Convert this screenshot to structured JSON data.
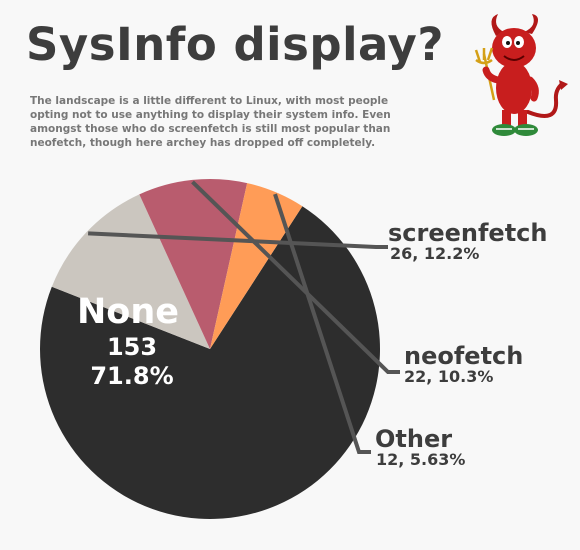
{
  "header": {
    "title": "SysInfo display?",
    "description": "The landscape is a little different to Linux, with most people opting not to use anything to display their system info. Even amongst those who do screenfetch is still most popular than neofetch, though here archey has dropped off completely."
  },
  "mascot": {
    "icon": "daemon-mascot-icon"
  },
  "chart_data": {
    "type": "pie",
    "title": "SysInfo display?",
    "slices": [
      {
        "name": "None",
        "count": "153",
        "percent": "71.8%",
        "value": 153,
        "color": "#2d2d2d"
      },
      {
        "name": "screenfetch",
        "count_percent": "26, 12.2%",
        "value": 26,
        "color": "#cbc6bf"
      },
      {
        "name": "neofetch",
        "count_percent": "22, 10.3%",
        "value": 22,
        "color": "#b95c6e"
      },
      {
        "name": "Other",
        "count_percent": "12, 5.63%",
        "value": 12,
        "color": "#ff9c57"
      }
    ],
    "start_angle_deg": -57.1,
    "direction": "clockwise"
  }
}
